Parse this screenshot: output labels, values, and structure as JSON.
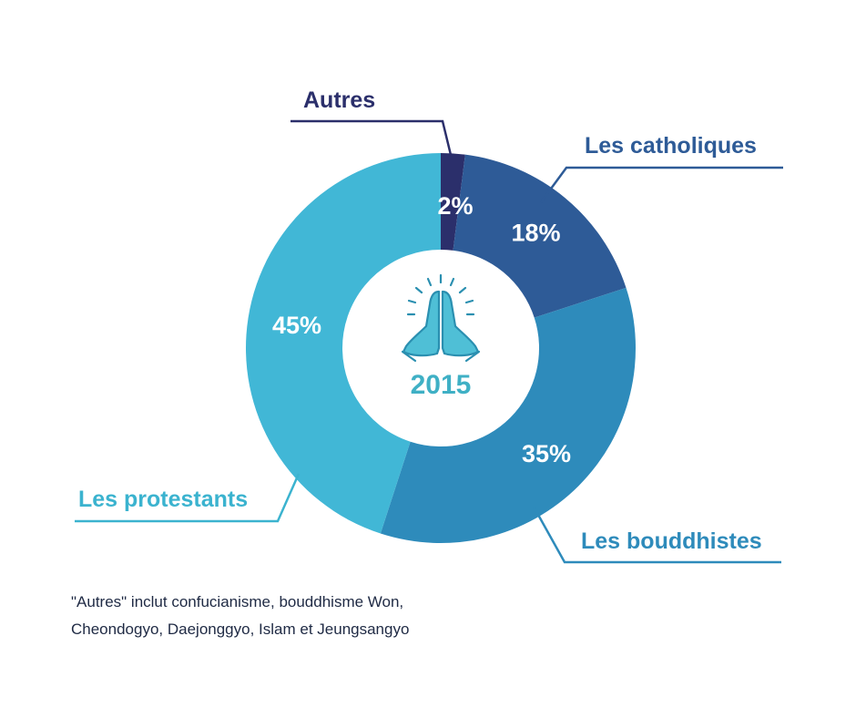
{
  "chart_data": {
    "type": "pie",
    "variant": "donut",
    "center_label": "2015",
    "center_icon": "praying-hands-icon",
    "slices": [
      {
        "name": "Autres",
        "value": 2,
        "label": "2%",
        "color": "#2b2f6b"
      },
      {
        "name": "Les catholiques",
        "value": 18,
        "label": "18%",
        "color": "#2e5b97"
      },
      {
        "name": "Les bouddhistes",
        "value": 35,
        "label": "35%",
        "color": "#2e8bbb"
      },
      {
        "name": "Les protestants",
        "value": 45,
        "label": "45%",
        "color": "#41b7d6"
      }
    ],
    "label_colors": {
      "Autres": "#2b2f6b",
      "Les catholiques": "#2e5b97",
      "Les bouddhistes": "#2e8bbb",
      "Les protestants": "#3bb3cf"
    },
    "year_color": "#3fb0c5",
    "icon_color": "#3fb0c5"
  },
  "footnote": {
    "line1": "\"Autres\" inclut confucianisme, bouddhisme Won,",
    "line2": "Cheondogyo, Daejonggyo, Islam et Jeungsangyo"
  }
}
